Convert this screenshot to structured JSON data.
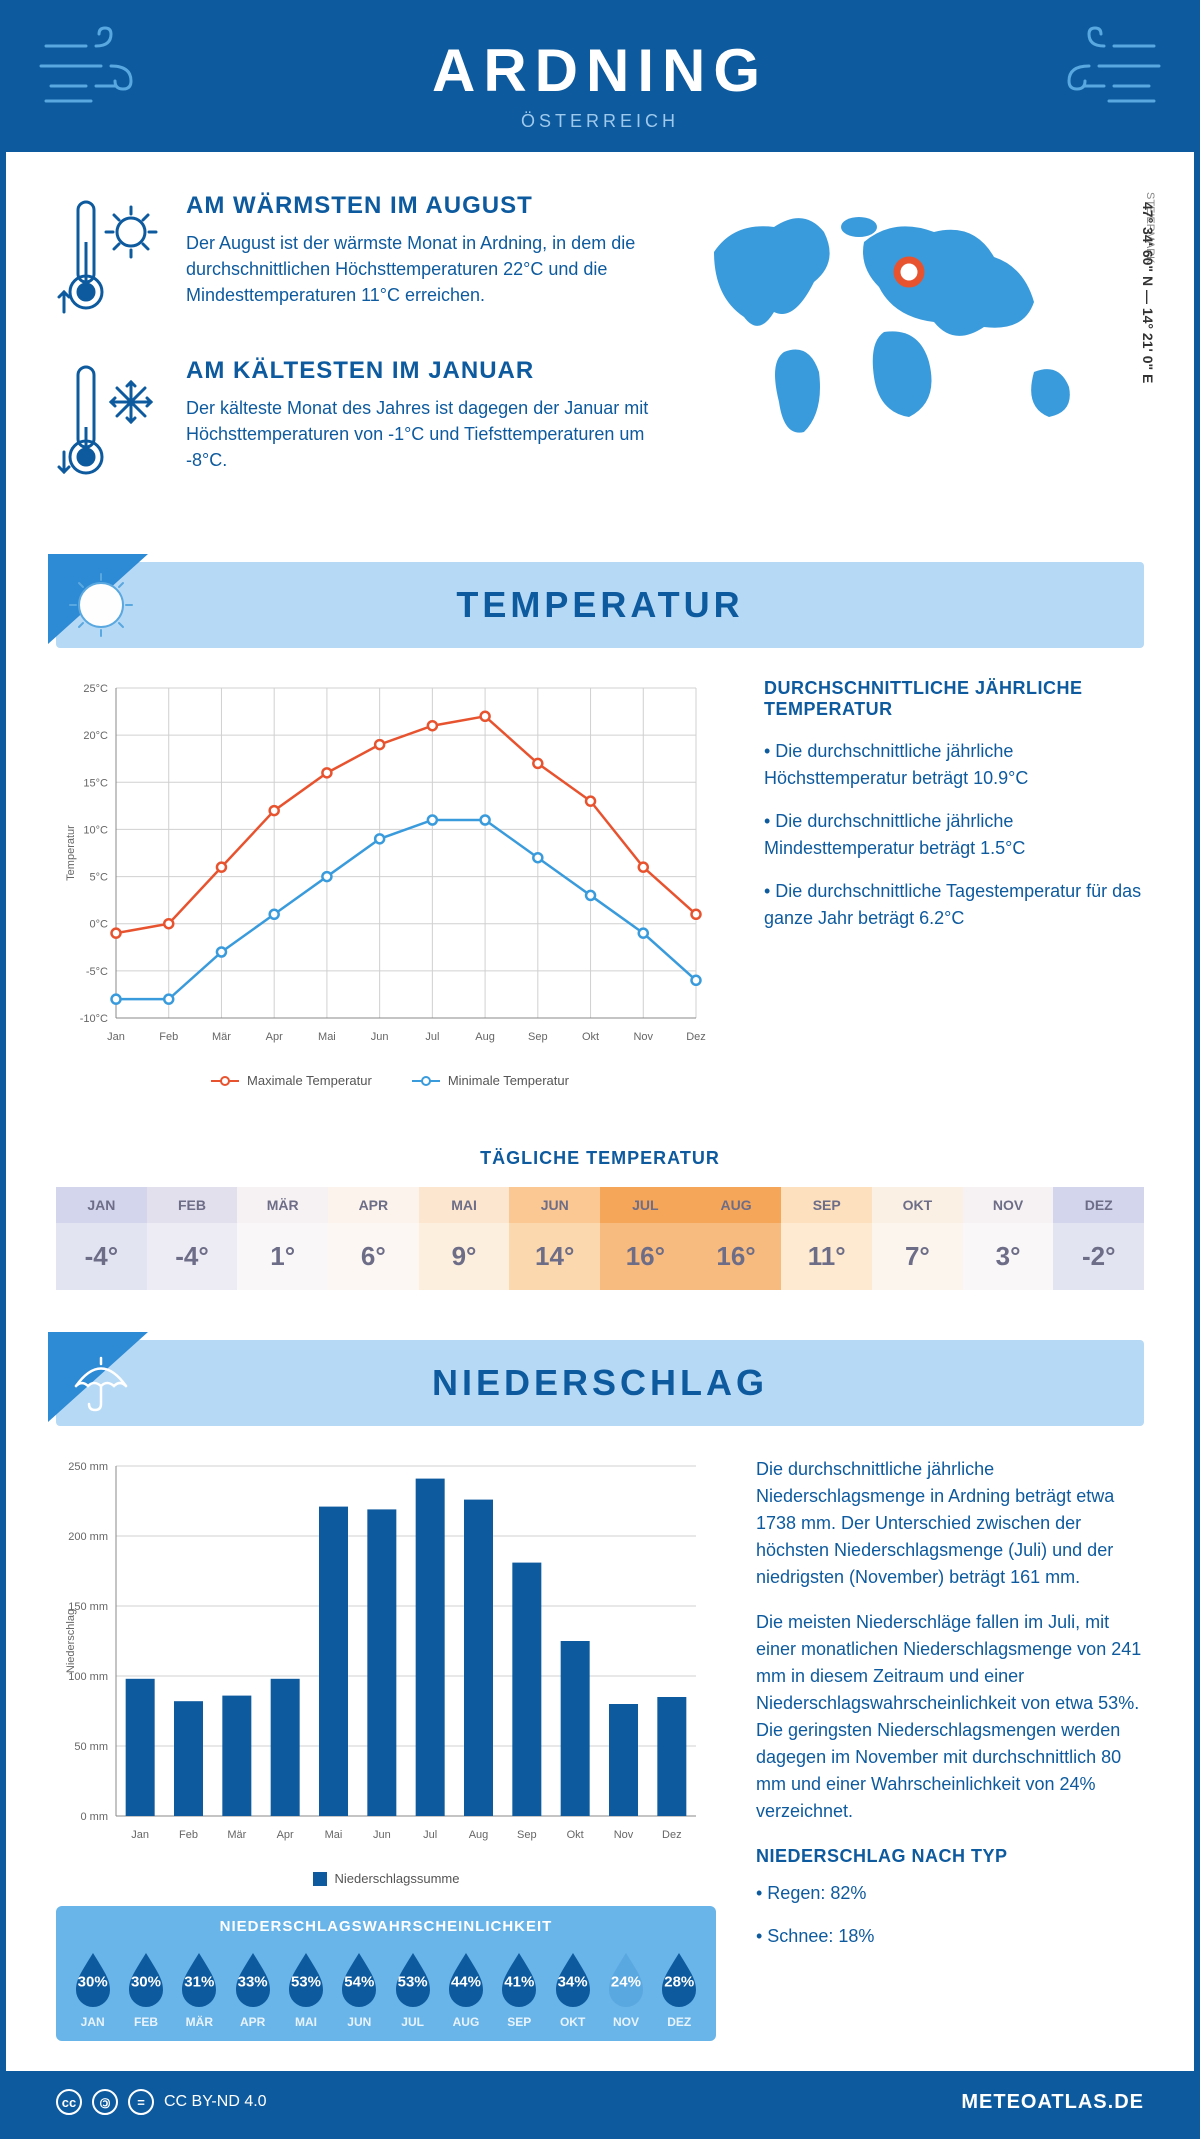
{
  "header": {
    "title": "ARDNING",
    "subtitle": "ÖSTERREICH"
  },
  "coords": "47° 34' 60\" N — 14° 21' 0\" E",
  "region": "STEIERMARK",
  "summary": {
    "warm": {
      "title": "AM WÄRMSTEN IM AUGUST",
      "text": "Der August ist der wärmste Monat in Ardning, in dem die durchschnittlichen Höchsttemperaturen 22°C und die Mindesttemperaturen 11°C erreichen."
    },
    "cold": {
      "title": "AM KÄLTESTEN IM JANUAR",
      "text": "Der kälteste Monat des Jahres ist dagegen der Januar mit Höchsttemperaturen von -1°C und Tiefsttemperaturen um -8°C."
    }
  },
  "sections": {
    "temp_title": "TEMPERATUR",
    "precip_title": "NIEDERSCHLAG"
  },
  "months": [
    "Jan",
    "Feb",
    "Mär",
    "Apr",
    "Mai",
    "Jun",
    "Jul",
    "Aug",
    "Sep",
    "Okt",
    "Nov",
    "Dez"
  ],
  "months_upper": [
    "JAN",
    "FEB",
    "MÄR",
    "APR",
    "MAI",
    "JUN",
    "JUL",
    "AUG",
    "SEP",
    "OKT",
    "NOV",
    "DEZ"
  ],
  "temp_chart": {
    "ylabel": "Temperatur",
    "ylim": [
      -10,
      25
    ],
    "ytick_step": 5,
    "max_series": {
      "label": "Maximale Temperatur",
      "color": "#e8532f",
      "values": [
        -1,
        0,
        6,
        12,
        16,
        19,
        21,
        22,
        17,
        13,
        6,
        1
      ]
    },
    "min_series": {
      "label": "Minimale Temperatur",
      "color": "#3a9bdc",
      "values": [
        -8,
        -8,
        -3,
        1,
        5,
        9,
        11,
        11,
        7,
        3,
        -1,
        -6
      ]
    },
    "grid_color": "#d0d0d0",
    "bg": "#ffffff"
  },
  "temp_side": {
    "title": "DURCHSCHNITTLICHE JÄHRLICHE TEMPERATUR",
    "bullets": [
      "• Die durchschnittliche jährliche Höchsttemperatur beträgt 10.9°C",
      "• Die durchschnittliche jährliche Mindesttemperatur beträgt 1.5°C",
      "• Die durchschnittliche Tagestemperatur für das ganze Jahr beträgt 6.2°C"
    ]
  },
  "daily_temp": {
    "title": "TÄGLICHE TEMPERATUR",
    "values": [
      "-4°",
      "-4°",
      "1°",
      "6°",
      "9°",
      "14°",
      "16°",
      "16°",
      "11°",
      "7°",
      "3°",
      "-2°"
    ],
    "head_colors": [
      "#d3d5ec",
      "#e3e0ee",
      "#f6f2f4",
      "#fbf3ec",
      "#fde6cf",
      "#fbc893",
      "#f5a659",
      "#f5a659",
      "#fde0bd",
      "#fbf0e4",
      "#f6f2f4",
      "#d3d5ec"
    ],
    "val_colors": [
      "#e3e4f2",
      "#edebf4",
      "#faf7f8",
      "#fcf7f2",
      "#fdefde",
      "#fcd8ae",
      "#f8bb7f",
      "#f8bb7f",
      "#fdead1",
      "#fcf5ed",
      "#faf7f8",
      "#e3e4f2"
    ],
    "text_color": "#6d6d88"
  },
  "precip_chart": {
    "ylabel": "Niederschlag",
    "ylim": [
      0,
      250
    ],
    "ytick_step": 50,
    "bar_color": "#0d5a9e",
    "values": [
      98,
      82,
      86,
      98,
      221,
      219,
      241,
      226,
      181,
      125,
      80,
      85
    ],
    "legend_label": "Niederschlagssumme"
  },
  "precip_text": {
    "p1": "Die durchschnittliche jährliche Niederschlagsmenge in Ardning beträgt etwa 1738 mm. Der Unterschied zwischen der höchsten Niederschlagsmenge (Juli) und der niedrigsten (November) beträgt 161 mm.",
    "p2": "Die meisten Niederschläge fallen im Juli, mit einer monatlichen Niederschlagsmenge von 241 mm in diesem Zeitraum und einer Niederschlagswahrscheinlichkeit von etwa 53%. Die geringsten Niederschlagsmengen werden dagegen im November mit durchschnittlich 80 mm und einer Wahrscheinlichkeit von 24% verzeichnet.",
    "type_title": "NIEDERSCHLAG NACH TYP",
    "type_b1": "• Regen: 82%",
    "type_b2": "• Schnee: 18%"
  },
  "prob": {
    "title": "NIEDERSCHLAGSWAHRSCHEINLICHKEIT",
    "values": [
      "30%",
      "30%",
      "31%",
      "33%",
      "53%",
      "54%",
      "53%",
      "44%",
      "41%",
      "34%",
      "24%",
      "28%"
    ],
    "drop_dark": "#0d5a9e",
    "drop_light": "#5aa8e0",
    "light_index": 10
  },
  "footer": {
    "cc": "CC BY-ND 4.0",
    "site": "METEOATLAS.DE"
  },
  "colors": {
    "primary": "#0d5a9e",
    "section_bg": "#b6d9f5",
    "corner": "#2e8bd4"
  }
}
